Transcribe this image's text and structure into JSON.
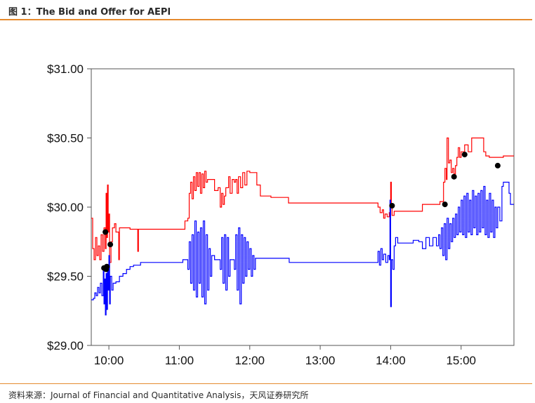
{
  "figure": {
    "title": "图 1：The Bid and Offer for AEPI",
    "source": "资料来源：Journal of Financial and Quantitative Analysis，天风证券研究所"
  },
  "chart_data": {
    "type": "line",
    "title": "",
    "xlabel": "",
    "ylabel": "",
    "x_unit": "hours",
    "xlim": [
      9.75,
      15.75
    ],
    "ylim": [
      29.0,
      31.0
    ],
    "x_ticks": [
      10,
      11,
      12,
      13,
      14,
      15
    ],
    "x_tick_labels": [
      "10:00",
      "11:00",
      "12:00",
      "13:00",
      "14:00",
      "15:00"
    ],
    "y_ticks": [
      29.0,
      29.5,
      30.0,
      30.5,
      31.0
    ],
    "y_tick_labels": [
      "$29.00",
      "$29.50",
      "$30.00",
      "$30.50",
      "$31.00"
    ],
    "grid": false,
    "legend": "none",
    "series": [
      {
        "color": "#ff0000",
        "points": [
          [
            9.75,
            29.92
          ],
          [
            9.77,
            29.7
          ],
          [
            9.79,
            29.62
          ],
          [
            9.81,
            29.78
          ],
          [
            9.83,
            29.65
          ],
          [
            9.85,
            29.72
          ],
          [
            9.87,
            29.62
          ],
          [
            9.89,
            29.8
          ],
          [
            9.91,
            29.68
          ],
          [
            9.93,
            29.85
          ],
          [
            9.95,
            29.7
          ],
          [
            9.96,
            30.1
          ],
          [
            9.97,
            29.78
          ],
          [
            9.98,
            30.16
          ],
          [
            9.99,
            29.82
          ],
          [
            10.0,
            29.95
          ],
          [
            10.01,
            29.6
          ],
          [
            10.03,
            29.75
          ],
          [
            10.05,
            29.85
          ],
          [
            10.08,
            29.88
          ],
          [
            10.1,
            29.82
          ],
          [
            10.13,
            29.82
          ],
          [
            10.14,
            29.62
          ],
          [
            10.15,
            29.85
          ],
          [
            10.3,
            29.84
          ],
          [
            10.4,
            29.84
          ],
          [
            10.41,
            29.68
          ],
          [
            10.42,
            29.84
          ],
          [
            11.0,
            29.84
          ],
          [
            11.05,
            29.84
          ],
          [
            11.08,
            29.9
          ],
          [
            11.12,
            29.92
          ],
          [
            11.14,
            30.1
          ],
          [
            11.16,
            30.18
          ],
          [
            11.18,
            30.06
          ],
          [
            11.2,
            30.22
          ],
          [
            11.22,
            30.12
          ],
          [
            11.24,
            30.25
          ],
          [
            11.26,
            30.15
          ],
          [
            11.28,
            30.25
          ],
          [
            11.3,
            30.1
          ],
          [
            11.32,
            30.24
          ],
          [
            11.34,
            30.14
          ],
          [
            11.36,
            30.26
          ],
          [
            11.38,
            30.18
          ],
          [
            11.4,
            30.2
          ],
          [
            11.45,
            30.2
          ],
          [
            11.5,
            30.12
          ],
          [
            11.55,
            30.14
          ],
          [
            11.58,
            30.0
          ],
          [
            11.6,
            30.1
          ],
          [
            11.62,
            30.02
          ],
          [
            11.64,
            30.08
          ],
          [
            11.66,
            30.14
          ],
          [
            11.7,
            30.22
          ],
          [
            11.72,
            30.1
          ],
          [
            11.75,
            30.2
          ],
          [
            11.78,
            30.18
          ],
          [
            11.8,
            30.2
          ],
          [
            11.82,
            30.1
          ],
          [
            11.84,
            30.22
          ],
          [
            11.87,
            30.14
          ],
          [
            11.9,
            30.25
          ],
          [
            11.93,
            30.16
          ],
          [
            11.96,
            30.26
          ],
          [
            12.0,
            30.25
          ],
          [
            12.05,
            30.25
          ],
          [
            12.1,
            30.16
          ],
          [
            12.15,
            30.08
          ],
          [
            12.25,
            30.08
          ],
          [
            12.3,
            30.07
          ],
          [
            12.5,
            30.07
          ],
          [
            12.55,
            30.03
          ],
          [
            13.0,
            30.03
          ],
          [
            13.5,
            30.03
          ],
          [
            13.8,
            30.03
          ],
          [
            13.82,
            30.0
          ],
          [
            13.85,
            29.96
          ],
          [
            13.88,
            29.98
          ],
          [
            13.9,
            29.92
          ],
          [
            13.92,
            29.95
          ],
          [
            13.95,
            29.93
          ],
          [
            13.98,
            29.96
          ],
          [
            14.0,
            30.18
          ],
          [
            14.01,
            30.02
          ],
          [
            14.02,
            29.94
          ],
          [
            14.05,
            29.97
          ],
          [
            14.4,
            29.97
          ],
          [
            14.45,
            30.02
          ],
          [
            14.5,
            30.02
          ],
          [
            14.7,
            30.04
          ],
          [
            14.75,
            30.18
          ],
          [
            14.77,
            30.28
          ],
          [
            14.79,
            30.2
          ],
          [
            14.8,
            30.5
          ],
          [
            14.82,
            30.32
          ],
          [
            14.84,
            30.34
          ],
          [
            14.86,
            30.25
          ],
          [
            14.88,
            30.28
          ],
          [
            14.9,
            30.24
          ],
          [
            14.92,
            30.3
          ],
          [
            14.94,
            30.36
          ],
          [
            14.96,
            30.43
          ],
          [
            14.98,
            30.36
          ],
          [
            15.0,
            30.4
          ],
          [
            15.05,
            30.45
          ],
          [
            15.1,
            30.4
          ],
          [
            15.15,
            30.5
          ],
          [
            15.3,
            30.5
          ],
          [
            15.32,
            30.4
          ],
          [
            15.35,
            30.37
          ],
          [
            15.4,
            30.36
          ],
          [
            15.5,
            30.36
          ],
          [
            15.6,
            30.37
          ],
          [
            15.75,
            30.37
          ]
        ]
      },
      {
        "color": "#0000ff",
        "points": [
          [
            9.75,
            29.33
          ],
          [
            9.78,
            29.34
          ],
          [
            9.8,
            29.38
          ],
          [
            9.82,
            29.36
          ],
          [
            9.84,
            29.42
          ],
          [
            9.86,
            29.38
          ],
          [
            9.88,
            29.45
          ],
          [
            9.9,
            29.36
          ],
          [
            9.92,
            29.55
          ],
          [
            9.93,
            29.3
          ],
          [
            9.94,
            29.48
          ],
          [
            9.95,
            29.22
          ],
          [
            9.96,
            29.52
          ],
          [
            9.97,
            29.26
          ],
          [
            9.98,
            29.55
          ],
          [
            9.99,
            29.4
          ],
          [
            10.0,
            29.65
          ],
          [
            10.01,
            29.3
          ],
          [
            10.02,
            29.5
          ],
          [
            10.04,
            29.4
          ],
          [
            10.06,
            29.45
          ],
          [
            10.1,
            29.46
          ],
          [
            10.15,
            29.5
          ],
          [
            10.2,
            29.52
          ],
          [
            10.25,
            29.55
          ],
          [
            10.3,
            29.57
          ],
          [
            10.35,
            29.58
          ],
          [
            10.4,
            29.58
          ],
          [
            10.45,
            29.6
          ],
          [
            11.0,
            29.6
          ],
          [
            11.05,
            29.62
          ],
          [
            11.1,
            29.62
          ],
          [
            11.12,
            29.55
          ],
          [
            11.14,
            29.75
          ],
          [
            11.16,
            29.45
          ],
          [
            11.18,
            29.8
          ],
          [
            11.2,
            29.4
          ],
          [
            11.22,
            29.9
          ],
          [
            11.24,
            29.35
          ],
          [
            11.26,
            29.82
          ],
          [
            11.28,
            29.45
          ],
          [
            11.3,
            29.85
          ],
          [
            11.32,
            29.35
          ],
          [
            11.34,
            29.9
          ],
          [
            11.36,
            29.3
          ],
          [
            11.38,
            29.8
          ],
          [
            11.4,
            29.4
          ],
          [
            11.42,
            29.7
          ],
          [
            11.44,
            29.5
          ],
          [
            11.46,
            29.65
          ],
          [
            11.5,
            29.62
          ],
          [
            11.55,
            29.62
          ],
          [
            11.58,
            29.55
          ],
          [
            11.6,
            29.78
          ],
          [
            11.62,
            29.45
          ],
          [
            11.64,
            29.8
          ],
          [
            11.66,
            29.4
          ],
          [
            11.68,
            29.78
          ],
          [
            11.7,
            29.5
          ],
          [
            11.72,
            29.62
          ],
          [
            11.75,
            29.62
          ],
          [
            11.78,
            29.55
          ],
          [
            11.8,
            29.8
          ],
          [
            11.82,
            29.4
          ],
          [
            11.84,
            29.85
          ],
          [
            11.86,
            29.3
          ],
          [
            11.88,
            29.8
          ],
          [
            11.9,
            29.45
          ],
          [
            11.92,
            29.78
          ],
          [
            11.94,
            29.5
          ],
          [
            11.96,
            29.75
          ],
          [
            11.98,
            29.55
          ],
          [
            12.0,
            29.7
          ],
          [
            12.02,
            29.5
          ],
          [
            12.04,
            29.65
          ],
          [
            12.06,
            29.55
          ],
          [
            12.08,
            29.63
          ],
          [
            12.15,
            29.63
          ],
          [
            12.55,
            29.63
          ],
          [
            12.56,
            29.6
          ],
          [
            13.0,
            29.6
          ],
          [
            13.8,
            29.6
          ],
          [
            13.82,
            29.68
          ],
          [
            13.84,
            29.58
          ],
          [
            13.86,
            29.7
          ],
          [
            13.88,
            29.62
          ],
          [
            13.9,
            29.66
          ],
          [
            13.93,
            29.6
          ],
          [
            13.96,
            29.65
          ],
          [
            13.98,
            29.62
          ],
          [
            13.99,
            30.05
          ],
          [
            14.0,
            29.28
          ],
          [
            14.01,
            29.62
          ],
          [
            14.03,
            29.55
          ],
          [
            14.05,
            29.72
          ],
          [
            14.07,
            29.78
          ],
          [
            14.1,
            29.74
          ],
          [
            14.3,
            29.74
          ],
          [
            14.32,
            29.76
          ],
          [
            14.4,
            29.75
          ],
          [
            14.45,
            29.7
          ],
          [
            14.5,
            29.78
          ],
          [
            14.55,
            29.72
          ],
          [
            14.6,
            29.78
          ],
          [
            14.65,
            29.72
          ],
          [
            14.68,
            29.8
          ],
          [
            14.7,
            29.7
          ],
          [
            14.72,
            29.85
          ],
          [
            14.74,
            29.65
          ],
          [
            14.76,
            29.88
          ],
          [
            14.78,
            29.62
          ],
          [
            14.8,
            29.92
          ],
          [
            14.82,
            29.7
          ],
          [
            14.84,
            29.88
          ],
          [
            14.86,
            29.75
          ],
          [
            14.88,
            29.92
          ],
          [
            14.9,
            29.78
          ],
          [
            14.92,
            29.95
          ],
          [
            14.94,
            29.8
          ],
          [
            14.96,
            30.0
          ],
          [
            14.98,
            29.82
          ],
          [
            15.0,
            30.05
          ],
          [
            15.02,
            29.8
          ],
          [
            15.04,
            30.08
          ],
          [
            15.06,
            29.78
          ],
          [
            15.08,
            30.1
          ],
          [
            15.1,
            29.82
          ],
          [
            15.12,
            30.05
          ],
          [
            15.14,
            29.8
          ],
          [
            15.16,
            30.12
          ],
          [
            15.18,
            29.85
          ],
          [
            15.2,
            30.08
          ],
          [
            15.22,
            29.8
          ],
          [
            15.24,
            30.1
          ],
          [
            15.26,
            29.82
          ],
          [
            15.28,
            30.12
          ],
          [
            15.3,
            29.85
          ],
          [
            15.32,
            30.15
          ],
          [
            15.34,
            29.8
          ],
          [
            15.36,
            30.05
          ],
          [
            15.38,
            29.78
          ],
          [
            15.4,
            30.1
          ],
          [
            15.42,
            29.82
          ],
          [
            15.44,
            30.05
          ],
          [
            15.46,
            29.78
          ],
          [
            15.48,
            30.0
          ],
          [
            15.5,
            29.85
          ],
          [
            15.52,
            30.0
          ],
          [
            15.55,
            29.9
          ],
          [
            15.58,
            30.15
          ],
          [
            15.6,
            30.18
          ],
          [
            15.65,
            30.18
          ],
          [
            15.68,
            30.1
          ],
          [
            15.7,
            30.02
          ],
          [
            15.75,
            30.02
          ]
        ]
      }
    ],
    "trades": [
      [
        9.95,
        29.82
      ],
      [
        9.93,
        29.56
      ],
      [
        9.96,
        29.55
      ],
      [
        9.97,
        29.57
      ],
      [
        10.02,
        29.73
      ],
      [
        14.02,
        30.01
      ],
      [
        14.77,
        30.02
      ],
      [
        14.9,
        30.22
      ],
      [
        15.05,
        30.38
      ],
      [
        15.52,
        30.3
      ]
    ]
  }
}
